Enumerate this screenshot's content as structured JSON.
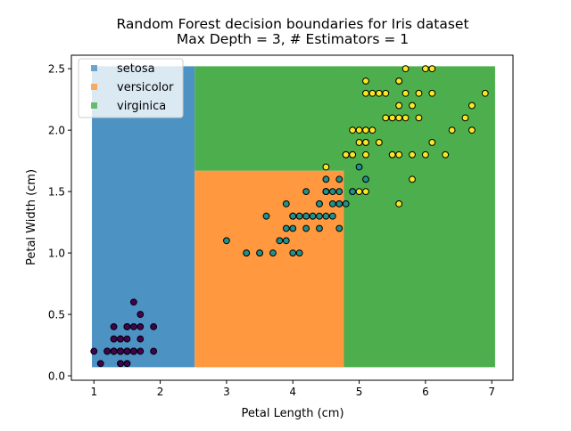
{
  "chart_data": {
    "type": "scatter",
    "title": "Random Forest decision boundaries for Iris dataset",
    "subtitle": "Max Depth = 3, # Estimators = 1",
    "xlabel": "Petal Length (cm)",
    "ylabel": "Petal Width (cm)",
    "xlim": [
      0.66,
      7.32
    ],
    "ylim": [
      -0.036,
      2.61
    ],
    "xticks": [
      "1",
      "2",
      "3",
      "4",
      "5",
      "6",
      "7"
    ],
    "yticks": [
      "0.0",
      "0.5",
      "1.0",
      "1.5",
      "2.0",
      "2.5"
    ],
    "grid": false,
    "legend": {
      "placement": "top-left",
      "entries": [
        "setosa",
        "versicolor",
        "virginica"
      ]
    },
    "region_colors": {
      "setosa": "#4c92c3",
      "versicolor": "#ff983e",
      "virginica": "#4cae4c"
    },
    "regions": [
      {
        "class": "setosa",
        "x": [
          0.97,
          2.52
        ],
        "y": [
          0.07,
          2.52
        ]
      },
      {
        "class": "versicolor",
        "x": [
          2.52,
          4.77
        ],
        "y": [
          0.07,
          1.67
        ]
      },
      {
        "class": "virginica",
        "x": [
          2.52,
          4.77
        ],
        "y": [
          1.67,
          2.52
        ]
      },
      {
        "class": "virginica",
        "x": [
          4.77,
          7.05
        ],
        "y": [
          0.07,
          2.52
        ]
      }
    ],
    "series": [
      {
        "class": "setosa",
        "color": "#440154",
        "points": [
          [
            1.4,
            0.2
          ],
          [
            1.4,
            0.2
          ],
          [
            1.3,
            0.2
          ],
          [
            1.5,
            0.2
          ],
          [
            1.4,
            0.2
          ],
          [
            1.7,
            0.4
          ],
          [
            1.4,
            0.3
          ],
          [
            1.5,
            0.2
          ],
          [
            1.4,
            0.2
          ],
          [
            1.5,
            0.1
          ],
          [
            1.5,
            0.2
          ],
          [
            1.6,
            0.2
          ],
          [
            1.4,
            0.1
          ],
          [
            1.1,
            0.1
          ],
          [
            1.2,
            0.2
          ],
          [
            1.5,
            0.4
          ],
          [
            1.3,
            0.4
          ],
          [
            1.4,
            0.3
          ],
          [
            1.7,
            0.3
          ],
          [
            1.5,
            0.3
          ],
          [
            1.7,
            0.2
          ],
          [
            1.5,
            0.4
          ],
          [
            1.0,
            0.2
          ],
          [
            1.7,
            0.5
          ],
          [
            1.9,
            0.2
          ],
          [
            1.6,
            0.2
          ],
          [
            1.6,
            0.4
          ],
          [
            1.5,
            0.2
          ],
          [
            1.4,
            0.2
          ],
          [
            1.6,
            0.2
          ],
          [
            1.6,
            0.2
          ],
          [
            1.5,
            0.4
          ],
          [
            1.5,
            0.1
          ],
          [
            1.4,
            0.2
          ],
          [
            1.5,
            0.2
          ],
          [
            1.2,
            0.2
          ],
          [
            1.3,
            0.2
          ],
          [
            1.4,
            0.1
          ],
          [
            1.3,
            0.2
          ],
          [
            1.5,
            0.2
          ],
          [
            1.3,
            0.3
          ],
          [
            1.3,
            0.3
          ],
          [
            1.3,
            0.2
          ],
          [
            1.6,
            0.6
          ],
          [
            1.9,
            0.4
          ],
          [
            1.4,
            0.3
          ],
          [
            1.6,
            0.2
          ],
          [
            1.4,
            0.2
          ],
          [
            1.5,
            0.2
          ],
          [
            1.4,
            0.2
          ]
        ]
      },
      {
        "class": "versicolor",
        "color": "#21918c",
        "points": [
          [
            4.7,
            1.4
          ],
          [
            4.5,
            1.5
          ],
          [
            4.9,
            1.5
          ],
          [
            4.0,
            1.3
          ],
          [
            4.6,
            1.5
          ],
          [
            4.5,
            1.3
          ],
          [
            4.7,
            1.6
          ],
          [
            3.3,
            1.0
          ],
          [
            4.6,
            1.3
          ],
          [
            3.9,
            1.4
          ],
          [
            3.5,
            1.0
          ],
          [
            4.2,
            1.5
          ],
          [
            4.0,
            1.0
          ],
          [
            4.7,
            1.4
          ],
          [
            3.6,
            1.3
          ],
          [
            4.4,
            1.4
          ],
          [
            4.5,
            1.5
          ],
          [
            4.1,
            1.0
          ],
          [
            4.5,
            1.5
          ],
          [
            3.9,
            1.1
          ],
          [
            4.8,
            1.8
          ],
          [
            4.0,
            1.3
          ],
          [
            4.9,
            1.5
          ],
          [
            4.7,
            1.2
          ],
          [
            4.3,
            1.3
          ],
          [
            4.4,
            1.4
          ],
          [
            4.8,
            1.4
          ],
          [
            5.0,
            1.7
          ],
          [
            4.5,
            1.5
          ],
          [
            3.5,
            1.0
          ],
          [
            3.8,
            1.1
          ],
          [
            3.7,
            1.0
          ],
          [
            3.9,
            1.2
          ],
          [
            5.1,
            1.6
          ],
          [
            4.5,
            1.5
          ],
          [
            4.5,
            1.6
          ],
          [
            4.7,
            1.5
          ],
          [
            4.4,
            1.3
          ],
          [
            4.1,
            1.3
          ],
          [
            4.0,
            1.3
          ],
          [
            4.4,
            1.2
          ],
          [
            4.6,
            1.4
          ],
          [
            4.0,
            1.2
          ],
          [
            3.3,
            1.0
          ],
          [
            4.2,
            1.3
          ],
          [
            4.2,
            1.2
          ],
          [
            4.2,
            1.3
          ],
          [
            4.3,
            1.3
          ],
          [
            3.0,
            1.1
          ],
          [
            4.1,
            1.3
          ]
        ]
      },
      {
        "class": "virginica",
        "color": "#fde725",
        "points": [
          [
            6.0,
            2.5
          ],
          [
            5.1,
            1.9
          ],
          [
            5.9,
            2.1
          ],
          [
            5.6,
            1.8
          ],
          [
            5.8,
            2.2
          ],
          [
            6.6,
            2.1
          ],
          [
            4.5,
            1.7
          ],
          [
            6.3,
            1.8
          ],
          [
            5.8,
            1.8
          ],
          [
            6.1,
            2.5
          ],
          [
            5.1,
            2.0
          ],
          [
            5.3,
            1.9
          ],
          [
            5.5,
            2.1
          ],
          [
            5.0,
            2.0
          ],
          [
            5.1,
            2.4
          ],
          [
            5.3,
            2.3
          ],
          [
            5.5,
            1.8
          ],
          [
            6.7,
            2.2
          ],
          [
            6.9,
            2.3
          ],
          [
            5.0,
            1.5
          ],
          [
            5.7,
            2.3
          ],
          [
            4.9,
            2.0
          ],
          [
            6.7,
            2.0
          ],
          [
            4.9,
            1.8
          ],
          [
            5.7,
            2.1
          ],
          [
            6.0,
            1.8
          ],
          [
            4.8,
            1.8
          ],
          [
            4.9,
            1.8
          ],
          [
            5.6,
            2.1
          ],
          [
            5.8,
            1.6
          ],
          [
            6.1,
            1.9
          ],
          [
            6.4,
            2.0
          ],
          [
            5.6,
            2.2
          ],
          [
            5.1,
            1.5
          ],
          [
            5.6,
            1.4
          ],
          [
            6.1,
            2.3
          ],
          [
            5.6,
            2.4
          ],
          [
            5.5,
            1.8
          ],
          [
            4.8,
            1.8
          ],
          [
            5.4,
            2.1
          ],
          [
            5.6,
            2.4
          ],
          [
            5.1,
            2.3
          ],
          [
            5.1,
            1.9
          ],
          [
            5.9,
            2.3
          ],
          [
            5.7,
            2.5
          ],
          [
            5.2,
            2.3
          ],
          [
            5.0,
            1.9
          ],
          [
            5.2,
            2.0
          ],
          [
            5.4,
            2.3
          ],
          [
            5.1,
            1.8
          ]
        ]
      }
    ]
  }
}
